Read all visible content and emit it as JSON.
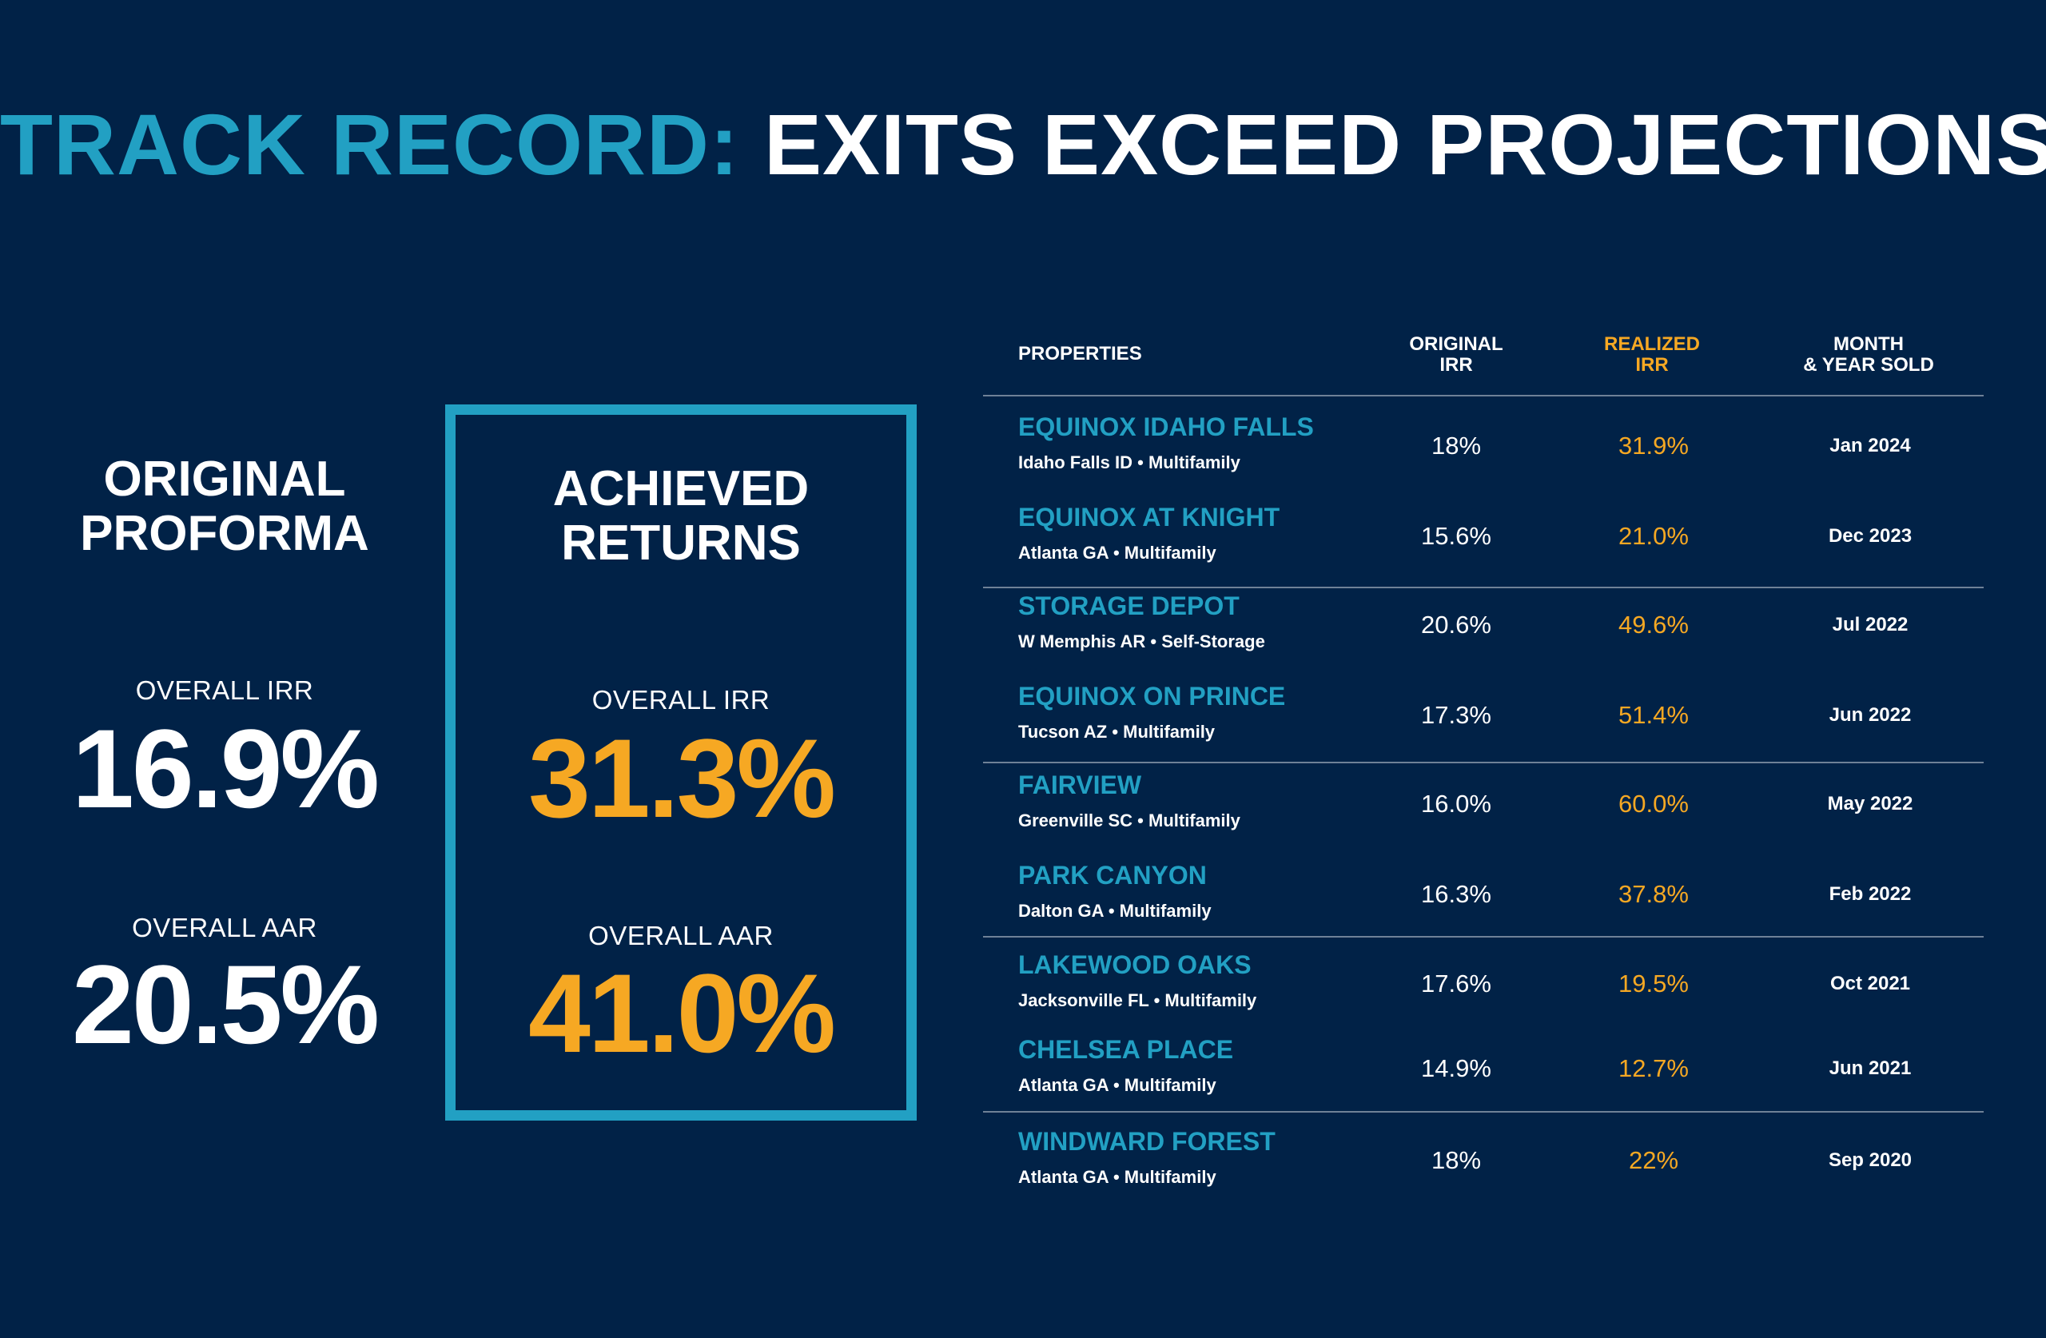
{
  "title": {
    "part1": "TRACK RECORD:",
    "part2": " EXITS EXCEED PROJECTIONS"
  },
  "proforma": {
    "heading_line1": "ORIGINAL",
    "heading_line2": "PROFORMA",
    "irr_label": "OVERALL IRR",
    "irr_value": "16.9%",
    "aar_label": "OVERALL AAR",
    "aar_value": "20.5%"
  },
  "achieved": {
    "heading_line1": "ACHIEVED",
    "heading_line2": "RETURNS",
    "irr_label": "OVERALL IRR",
    "irr_value": "31.3%",
    "aar_label": "OVERALL AAR",
    "aar_value": "41.0%"
  },
  "table": {
    "headers": {
      "properties": "PROPERTIES",
      "original_l1": "ORIGINAL",
      "original_l2": "IRR",
      "realized_l1": "REALIZED",
      "realized_l2": "IRR",
      "sold_l1": "MONTH",
      "sold_l2": "& YEAR SOLD"
    },
    "rows": [
      {
        "name": "EQUINOX IDAHO FALLS",
        "sub": "Idaho Falls ID • Multifamily",
        "original": "18%",
        "realized": "31.9%",
        "sold": "Jan 2024"
      },
      {
        "name": "EQUINOX AT KNIGHT",
        "sub": "Atlanta GA • Multifamily",
        "original": "15.6%",
        "realized": "21.0%",
        "sold": "Dec 2023"
      },
      {
        "name": "STORAGE DEPOT",
        "sub": "W Memphis AR • Self-Storage",
        "original": "20.6%",
        "realized": "49.6%",
        "sold": "Jul 2022"
      },
      {
        "name": "EQUINOX ON PRINCE",
        "sub": "Tucson AZ • Multifamily",
        "original": "17.3%",
        "realized": "51.4%",
        "sold": "Jun 2022"
      },
      {
        "name": "FAIRVIEW",
        "sub": "Greenville SC • Multifamily",
        "original": "16.0%",
        "realized": "60.0%",
        "sold": "May 2022"
      },
      {
        "name": "PARK CANYON",
        "sub": "Dalton GA • Multifamily",
        "original": "16.3%",
        "realized": "37.8%",
        "sold": "Feb 2022"
      },
      {
        "name": "LAKEWOOD OAKS",
        "sub": "Jacksonville FL • Multifamily",
        "original": "17.6%",
        "realized": "19.5%",
        "sold": "Oct 2021"
      },
      {
        "name": "CHELSEA PLACE",
        "sub": "Atlanta GA • Multifamily",
        "original": "14.9%",
        "realized": "12.7%",
        "sold": "Jun 2021"
      },
      {
        "name": "WINDWARD FOREST",
        "sub": "Atlanta GA • Multifamily",
        "original": "18%",
        "realized": "22%",
        "sold": "Sep 2020"
      }
    ]
  },
  "colors": {
    "background": "#012247",
    "teal": "#22a0c3",
    "orange": "#f6a823",
    "divider": "#6f8197"
  }
}
